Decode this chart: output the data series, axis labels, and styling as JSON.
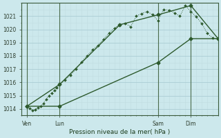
{
  "title": "Pression niveau de la mer( hPa )",
  "bg_color": "#cce8ec",
  "grid_major_color": "#aaccd4",
  "grid_minor_color": "#c0dce0",
  "line_color": "#2d5a2d",
  "xlim": [
    0,
    72
  ],
  "ylim": [
    1013.5,
    1022.0
  ],
  "yticks": [
    1014,
    1015,
    1016,
    1017,
    1018,
    1019,
    1020,
    1021
  ],
  "xtick_positions": [
    2,
    14,
    50,
    62
  ],
  "xtick_labels": [
    "Ven",
    "Lun",
    "Sam",
    "Dim"
  ],
  "vline_positions": [
    2,
    14,
    50,
    62
  ],
  "series1_x": [
    2,
    3,
    4,
    5,
    6,
    7,
    8,
    9,
    10,
    11,
    12,
    13,
    14,
    16,
    18,
    20,
    22,
    24,
    26,
    28,
    30,
    32,
    34,
    36,
    38,
    40,
    42,
    44,
    46,
    48,
    50,
    52,
    54,
    56,
    58,
    60,
    62,
    64,
    66,
    68,
    70,
    72
  ],
  "series1_y": [
    1014.2,
    1014.05,
    1013.9,
    1013.95,
    1014.1,
    1014.2,
    1014.4,
    1014.7,
    1015.0,
    1015.2,
    1015.4,
    1015.6,
    1015.85,
    1016.2,
    1016.55,
    1017.0,
    1017.55,
    1018.0,
    1018.45,
    1018.8,
    1019.25,
    1019.7,
    1020.1,
    1020.35,
    1020.45,
    1020.2,
    1021.0,
    1021.2,
    1021.35,
    1021.1,
    1020.65,
    1021.5,
    1021.45,
    1021.25,
    1021.0,
    1021.8,
    1021.35,
    1020.95,
    1020.45,
    1019.7,
    1019.35,
    1019.3
  ],
  "series2_x": [
    2,
    14,
    36,
    50,
    62,
    72
  ],
  "series2_y": [
    1014.2,
    1015.85,
    1020.35,
    1021.1,
    1021.8,
    1019.3
  ],
  "series3_x": [
    2,
    14,
    50,
    62,
    72
  ],
  "series3_y": [
    1014.2,
    1014.2,
    1017.5,
    1019.3,
    1019.3
  ]
}
